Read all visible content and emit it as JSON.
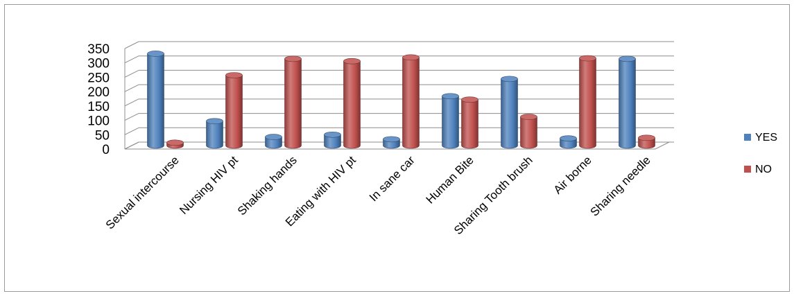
{
  "chart_data": {
    "type": "bar",
    "title": "",
    "xlabel": "",
    "ylabel": "",
    "categories": [
      "Sexual intercourse",
      "Nursing HIV pt",
      "Shaking hands",
      "Eating with HIV pt",
      "In sane car",
      "Human Bite",
      "Sharing Tooth brush",
      "Air borne",
      "Sharing needle"
    ],
    "series": [
      {
        "name": "YES",
        "color": "#4f81bd",
        "values": [
          320,
          85,
          30,
          38,
          22,
          172,
          232,
          25,
          302
        ]
      },
      {
        "name": "NO",
        "color": "#c0504d",
        "values": [
          10,
          245,
          302,
          294,
          307,
          160,
          100,
          304,
          27
        ]
      }
    ],
    "ylim": [
      0,
      350
    ],
    "yticks": [
      0,
      50,
      100,
      150,
      200,
      250,
      300,
      350
    ],
    "grid": true,
    "legend_position": "right",
    "bar_style": "3d-cylinder"
  }
}
